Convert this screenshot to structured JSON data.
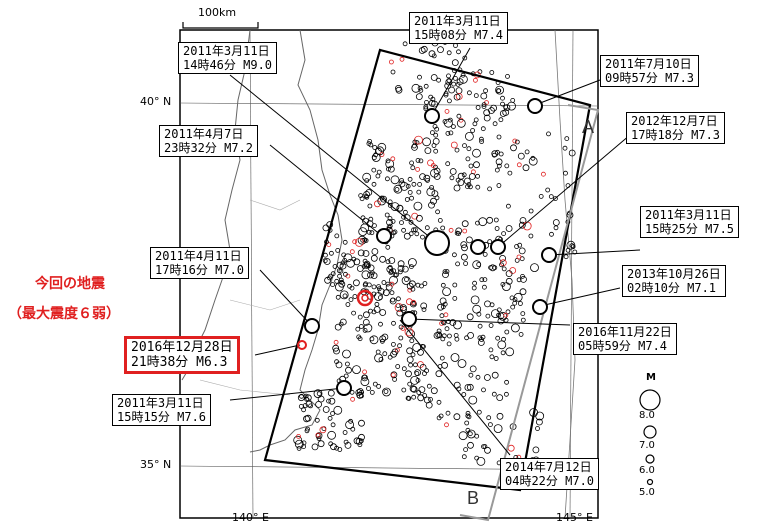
{
  "scale": {
    "label": "100km"
  },
  "axes": {
    "lat_labels": [
      "40° N",
      "35° N"
    ],
    "lon_labels": [
      "140° E",
      "145° E"
    ]
  },
  "sections": {
    "a": "A",
    "b": "B"
  },
  "note": {
    "line1": "今回の地震",
    "line2": "（最大震度６弱）"
  },
  "legend": {
    "title": "M",
    "magnitudes": [
      "8.0",
      "7.0",
      "6.0",
      "5.0"
    ]
  },
  "events": [
    {
      "date": "2011年3月11日",
      "time": "14時46分 M9.0"
    },
    {
      "date": "2011年3月11日",
      "time": "15時08分 M7.4"
    },
    {
      "date": "2011年7月10日",
      "time": "09時57分 M7.3"
    },
    {
      "date": "2011年4月7日",
      "time": "23時32分 M7.2"
    },
    {
      "date": "2012年12月7日",
      "time": "17時18分 M7.3"
    },
    {
      "date": "2011年3月11日",
      "time": "15時25分 M7.5"
    },
    {
      "date": "2013年10月26日",
      "time": "02時10分 M7.1"
    },
    {
      "date": "2011年4月11日",
      "time": "17時16分 M7.0"
    },
    {
      "date": "2016年11月22日",
      "time": "05時59分 M7.4"
    },
    {
      "date": "2016年12月28日",
      "time": "21時38分 M6.3"
    },
    {
      "date": "2011年3月11日",
      "time": "15時15分 M7.6"
    },
    {
      "date": "2014年7月12日",
      "time": "04時22分 M7.0"
    }
  ],
  "colors": {
    "highlight": "#e02020",
    "frame": "#000000",
    "section": "#999999"
  }
}
